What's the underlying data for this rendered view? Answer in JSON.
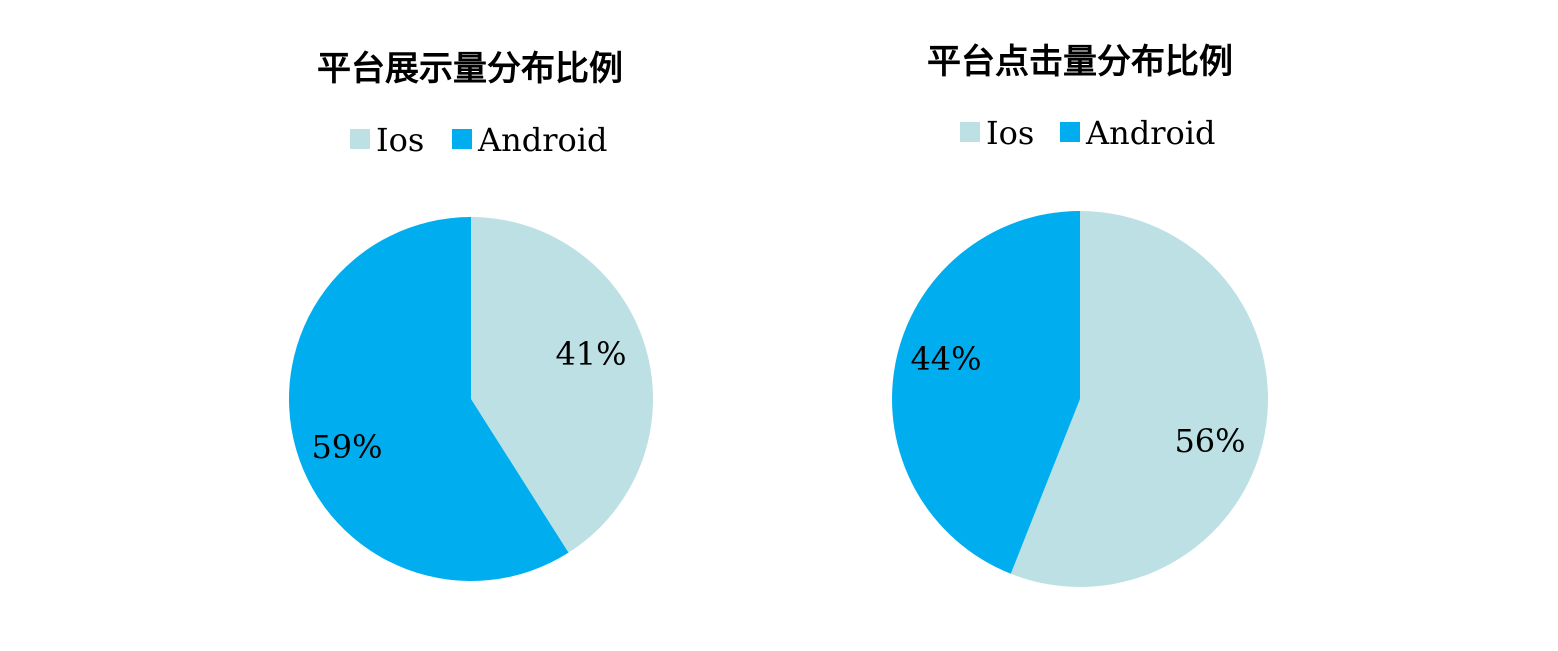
{
  "chart_data": [
    {
      "type": "pie",
      "title": "平台展示量分布比例",
      "categories": [
        "Ios",
        "Android"
      ],
      "values": [
        41,
        59
      ],
      "labels": [
        "41%",
        "59%"
      ],
      "colors": [
        "#BCE0E4",
        "#00AEEF"
      ],
      "start_angle": "12 o'clock",
      "direction": "clockwise",
      "legend_position": "top"
    },
    {
      "type": "pie",
      "title": "平台点击量分布比例",
      "categories": [
        "Ios",
        "Android"
      ],
      "values": [
        56,
        44
      ],
      "labels": [
        "56%",
        "44%"
      ],
      "colors": [
        "#BCE0E4",
        "#00AEEF"
      ],
      "start_angle": "12 o'clock",
      "direction": "clockwise",
      "legend_position": "top"
    }
  ]
}
